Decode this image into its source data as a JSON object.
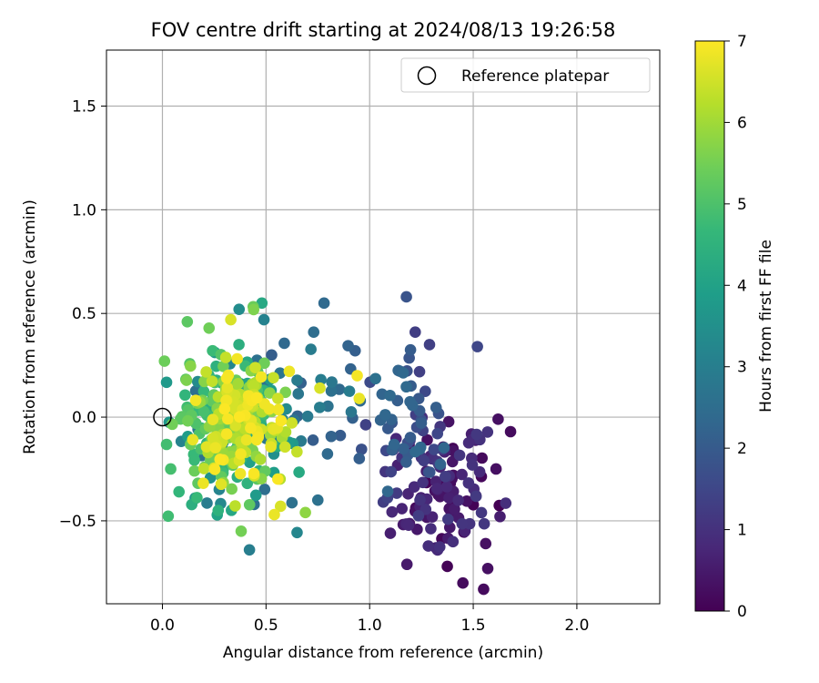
{
  "chart_data": {
    "type": "scatter",
    "title": "FOV centre drift starting at 2024/08/13 19:26:58",
    "xlabel": "Angular distance from reference (arcmin)",
    "ylabel": "Rotation from reference (arcmin)",
    "xlim": [
      -0.27,
      2.4
    ],
    "ylim": [
      -0.9,
      1.77
    ],
    "xticks": [
      0.0,
      0.5,
      1.0,
      1.5,
      2.0
    ],
    "xtick_labels": [
      "0.0",
      "0.5",
      "1.0",
      "1.5",
      "2.0"
    ],
    "yticks": [
      -0.5,
      0.0,
      0.5,
      1.0,
      1.5
    ],
    "ytick_labels": [
      "−0.5",
      "0.0",
      "0.5",
      "1.0",
      "1.5"
    ],
    "grid": true,
    "legend": {
      "placement": "top-right",
      "entries": [
        "Reference platepar"
      ]
    },
    "reference_point": {
      "x": 0.0,
      "y": 0.0,
      "label": "Reference platepar"
    },
    "colorbar": {
      "label": "Hours from first FF file",
      "min": 0,
      "max": 7,
      "ticks": [
        0,
        1,
        2,
        3,
        4,
        5,
        6,
        7
      ],
      "tick_labels": [
        "0",
        "1",
        "2",
        "3",
        "4",
        "5",
        "6",
        "7"
      ],
      "colormap": "viridis",
      "stops": [
        "#440154",
        "#482878",
        "#3e4989",
        "#31688e",
        "#26828e",
        "#1f9e89",
        "#35b779",
        "#6ece58",
        "#b5de2b",
        "#fde725"
      ]
    },
    "clusters": [
      {
        "hours": [
          0.0,
          1.3
        ],
        "n": 110,
        "center": [
          1.35,
          -0.33
        ],
        "spread": [
          0.13,
          0.17
        ]
      },
      {
        "hours": [
          1.3,
          2.4
        ],
        "n": 55,
        "center": [
          1.2,
          -0.02
        ],
        "spread": [
          0.11,
          0.16
        ]
      },
      {
        "hours": [
          2.0,
          3.0
        ],
        "n": 30,
        "center": [
          0.8,
          0.05
        ],
        "spread": [
          0.17,
          0.15
        ]
      },
      {
        "hours": [
          2.5,
          4.5
        ],
        "n": 80,
        "center": [
          0.38,
          -0.07
        ],
        "spread": [
          0.12,
          0.19
        ]
      },
      {
        "hours": [
          4.3,
          5.8
        ],
        "n": 140,
        "center": [
          0.3,
          -0.02
        ],
        "spread": [
          0.12,
          0.18
        ]
      },
      {
        "hours": [
          5.7,
          7.0
        ],
        "n": 150,
        "center": [
          0.37,
          0.0
        ],
        "spread": [
          0.1,
          0.15
        ]
      }
    ],
    "points": [
      {
        "x": 0.78,
        "y": 0.55,
        "hours": 2.4
      },
      {
        "x": 0.73,
        "y": 0.41,
        "hours": 2.5
      },
      {
        "x": 0.93,
        "y": 0.32,
        "hours": 2.1
      },
      {
        "x": 0.95,
        "y": -0.2,
        "hours": 2.1
      },
      {
        "x": 0.75,
        "y": -0.4,
        "hours": 2.6
      },
      {
        "x": 1.22,
        "y": 0.41,
        "hours": 1.3
      },
      {
        "x": 1.52,
        "y": 0.34,
        "hours": 1.5
      },
      {
        "x": 1.1,
        "y": -0.56,
        "hours": 0.6
      },
      {
        "x": 1.18,
        "y": -0.71,
        "hours": 0.5
      },
      {
        "x": 1.32,
        "y": -0.63,
        "hours": 0.6
      },
      {
        "x": 1.45,
        "y": -0.8,
        "hours": 0.2
      },
      {
        "x": 1.55,
        "y": -0.83,
        "hours": 0.2
      },
      {
        "x": 1.57,
        "y": -0.73,
        "hours": 0.3
      },
      {
        "x": 1.56,
        "y": -0.61,
        "hours": 0.3
      },
      {
        "x": 1.46,
        "y": -0.55,
        "hours": 0.7
      },
      {
        "x": 1.62,
        "y": -0.01,
        "hours": 0.3
      },
      {
        "x": 1.68,
        "y": -0.07,
        "hours": 0.2
      },
      {
        "x": 1.61,
        "y": -0.25,
        "hours": 0.3
      },
      {
        "x": 0.48,
        "y": 0.55,
        "hours": 4.2
      },
      {
        "x": 0.37,
        "y": 0.52,
        "hours": 3.4
      },
      {
        "x": 0.49,
        "y": 0.47,
        "hours": 3.1
      },
      {
        "x": 0.42,
        "y": -0.64,
        "hours": 3.0
      },
      {
        "x": 0.38,
        "y": -0.55,
        "hours": 5.5
      },
      {
        "x": 0.69,
        "y": -0.46,
        "hours": 5.8
      },
      {
        "x": 0.57,
        "y": -0.43,
        "hours": 6.6
      },
      {
        "x": 0.54,
        "y": -0.47,
        "hours": 6.8
      },
      {
        "x": 0.01,
        "y": 0.27,
        "hours": 5.4
      },
      {
        "x": 0.12,
        "y": 0.46,
        "hours": 5.2
      },
      {
        "x": 0.04,
        "y": -0.25,
        "hours": 4.9
      },
      {
        "x": 0.08,
        "y": -0.36,
        "hours": 4.6
      },
      {
        "x": 0.94,
        "y": 0.2,
        "hours": 6.9
      },
      {
        "x": 0.95,
        "y": 0.09,
        "hours": 6.8
      },
      {
        "x": 0.33,
        "y": 0.47,
        "hours": 6.6
      },
      {
        "x": 0.76,
        "y": 0.14,
        "hours": 6.6
      }
    ]
  }
}
